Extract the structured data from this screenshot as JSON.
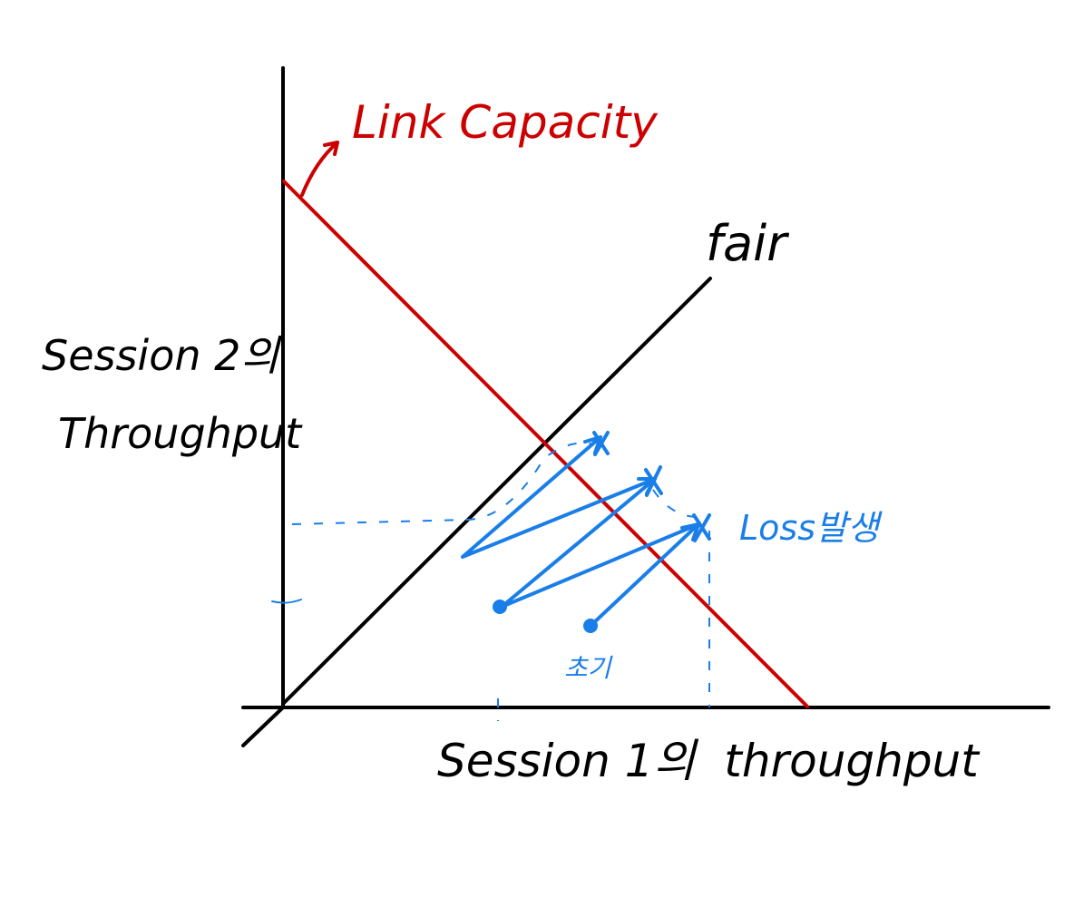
{
  "labels": {
    "link_capacity": "Link Capacity",
    "fair": "fair",
    "y_axis_line1": "Session 2의",
    "y_axis_line2": "Throughput",
    "x_axis": "Session 1의  throughput",
    "loss": "Loss발생",
    "initial": "초기"
  },
  "colors": {
    "axes": "#000000",
    "link_capacity": "#cc0000",
    "trajectory": "#1a7ee8",
    "background": "#ffffff"
  }
}
